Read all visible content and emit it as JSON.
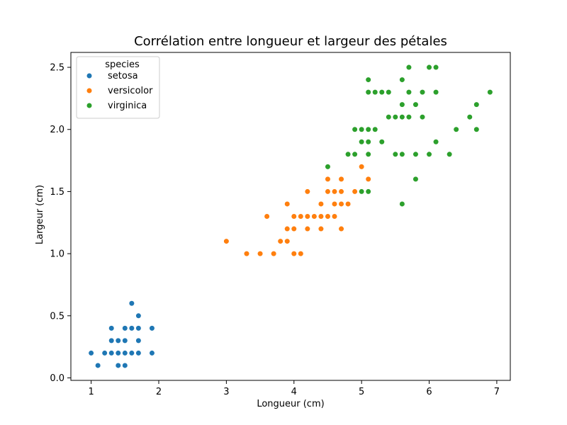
{
  "chart_data": {
    "type": "scatter",
    "title": "Corrélation entre longueur et largeur des pétales",
    "xlabel": "Longueur (cm)",
    "ylabel": "Largeur (cm)",
    "xlim": [
      0.7,
      7.2
    ],
    "ylim": [
      -0.02,
      2.62
    ],
    "xticks": [
      1,
      2,
      3,
      4,
      5,
      6,
      7
    ],
    "xtick_labels": [
      "1",
      "2",
      "3",
      "4",
      "5",
      "6",
      "7"
    ],
    "yticks": [
      0.0,
      0.5,
      1.0,
      1.5,
      2.0,
      2.5
    ],
    "ytick_labels": [
      "0.0",
      "0.5",
      "1.0",
      "1.5",
      "2.0",
      "2.5"
    ],
    "grid": false,
    "legend": {
      "title": "species",
      "placement": "top-left"
    },
    "series": [
      {
        "name": "setosa",
        "color": "#1f77b4",
        "points": [
          [
            1.0,
            0.2
          ],
          [
            1.1,
            0.1
          ],
          [
            1.2,
            0.2
          ],
          [
            1.3,
            0.2
          ],
          [
            1.3,
            0.3
          ],
          [
            1.3,
            0.4
          ],
          [
            1.4,
            0.1
          ],
          [
            1.4,
            0.2
          ],
          [
            1.4,
            0.3
          ],
          [
            1.5,
            0.1
          ],
          [
            1.5,
            0.2
          ],
          [
            1.5,
            0.3
          ],
          [
            1.5,
            0.4
          ],
          [
            1.6,
            0.2
          ],
          [
            1.6,
            0.4
          ],
          [
            1.6,
            0.6
          ],
          [
            1.7,
            0.2
          ],
          [
            1.7,
            0.3
          ],
          [
            1.7,
            0.4
          ],
          [
            1.7,
            0.5
          ],
          [
            1.9,
            0.2
          ],
          [
            1.9,
            0.4
          ]
        ]
      },
      {
        "name": "versicolor",
        "color": "#ff7f0e",
        "points": [
          [
            3.0,
            1.1
          ],
          [
            3.3,
            1.0
          ],
          [
            3.5,
            1.0
          ],
          [
            3.6,
            1.3
          ],
          [
            3.7,
            1.0
          ],
          [
            3.8,
            1.1
          ],
          [
            3.9,
            1.1
          ],
          [
            3.9,
            1.2
          ],
          [
            3.9,
            1.4
          ],
          [
            4.0,
            1.0
          ],
          [
            4.0,
            1.2
          ],
          [
            4.0,
            1.3
          ],
          [
            4.1,
            1.0
          ],
          [
            4.1,
            1.3
          ],
          [
            4.2,
            1.2
          ],
          [
            4.2,
            1.3
          ],
          [
            4.2,
            1.5
          ],
          [
            4.3,
            1.3
          ],
          [
            4.4,
            1.2
          ],
          [
            4.4,
            1.3
          ],
          [
            4.4,
            1.4
          ],
          [
            4.5,
            1.3
          ],
          [
            4.5,
            1.5
          ],
          [
            4.5,
            1.6
          ],
          [
            4.6,
            1.3
          ],
          [
            4.6,
            1.4
          ],
          [
            4.6,
            1.5
          ],
          [
            4.7,
            1.2
          ],
          [
            4.7,
            1.4
          ],
          [
            4.7,
            1.5
          ],
          [
            4.7,
            1.6
          ],
          [
            4.8,
            1.4
          ],
          [
            4.9,
            1.5
          ],
          [
            5.0,
            1.7
          ],
          [
            5.1,
            1.6
          ]
        ]
      },
      {
        "name": "virginica",
        "color": "#2ca02c",
        "points": [
          [
            4.5,
            1.7
          ],
          [
            4.8,
            1.8
          ],
          [
            4.9,
            1.8
          ],
          [
            4.9,
            2.0
          ],
          [
            5.0,
            1.5
          ],
          [
            5.0,
            1.9
          ],
          [
            5.0,
            2.0
          ],
          [
            5.1,
            1.5
          ],
          [
            5.1,
            1.8
          ],
          [
            5.1,
            1.9
          ],
          [
            5.1,
            2.0
          ],
          [
            5.1,
            2.3
          ],
          [
            5.1,
            2.4
          ],
          [
            5.2,
            2.0
          ],
          [
            5.2,
            2.3
          ],
          [
            5.3,
            1.9
          ],
          [
            5.3,
            2.3
          ],
          [
            5.4,
            2.1
          ],
          [
            5.4,
            2.3
          ],
          [
            5.5,
            1.8
          ],
          [
            5.5,
            2.1
          ],
          [
            5.6,
            1.4
          ],
          [
            5.6,
            1.8
          ],
          [
            5.6,
            2.1
          ],
          [
            5.6,
            2.2
          ],
          [
            5.6,
            2.4
          ],
          [
            5.7,
            2.1
          ],
          [
            5.7,
            2.3
          ],
          [
            5.7,
            2.5
          ],
          [
            5.8,
            1.6
          ],
          [
            5.8,
            1.8
          ],
          [
            5.8,
            2.2
          ],
          [
            5.9,
            2.1
          ],
          [
            5.9,
            2.3
          ],
          [
            6.0,
            1.8
          ],
          [
            6.0,
            2.5
          ],
          [
            6.1,
            1.9
          ],
          [
            6.1,
            2.3
          ],
          [
            6.1,
            2.5
          ],
          [
            6.3,
            1.8
          ],
          [
            6.4,
            2.0
          ],
          [
            6.6,
            2.1
          ],
          [
            6.7,
            2.0
          ],
          [
            6.7,
            2.2
          ],
          [
            6.9,
            2.3
          ]
        ]
      }
    ]
  }
}
